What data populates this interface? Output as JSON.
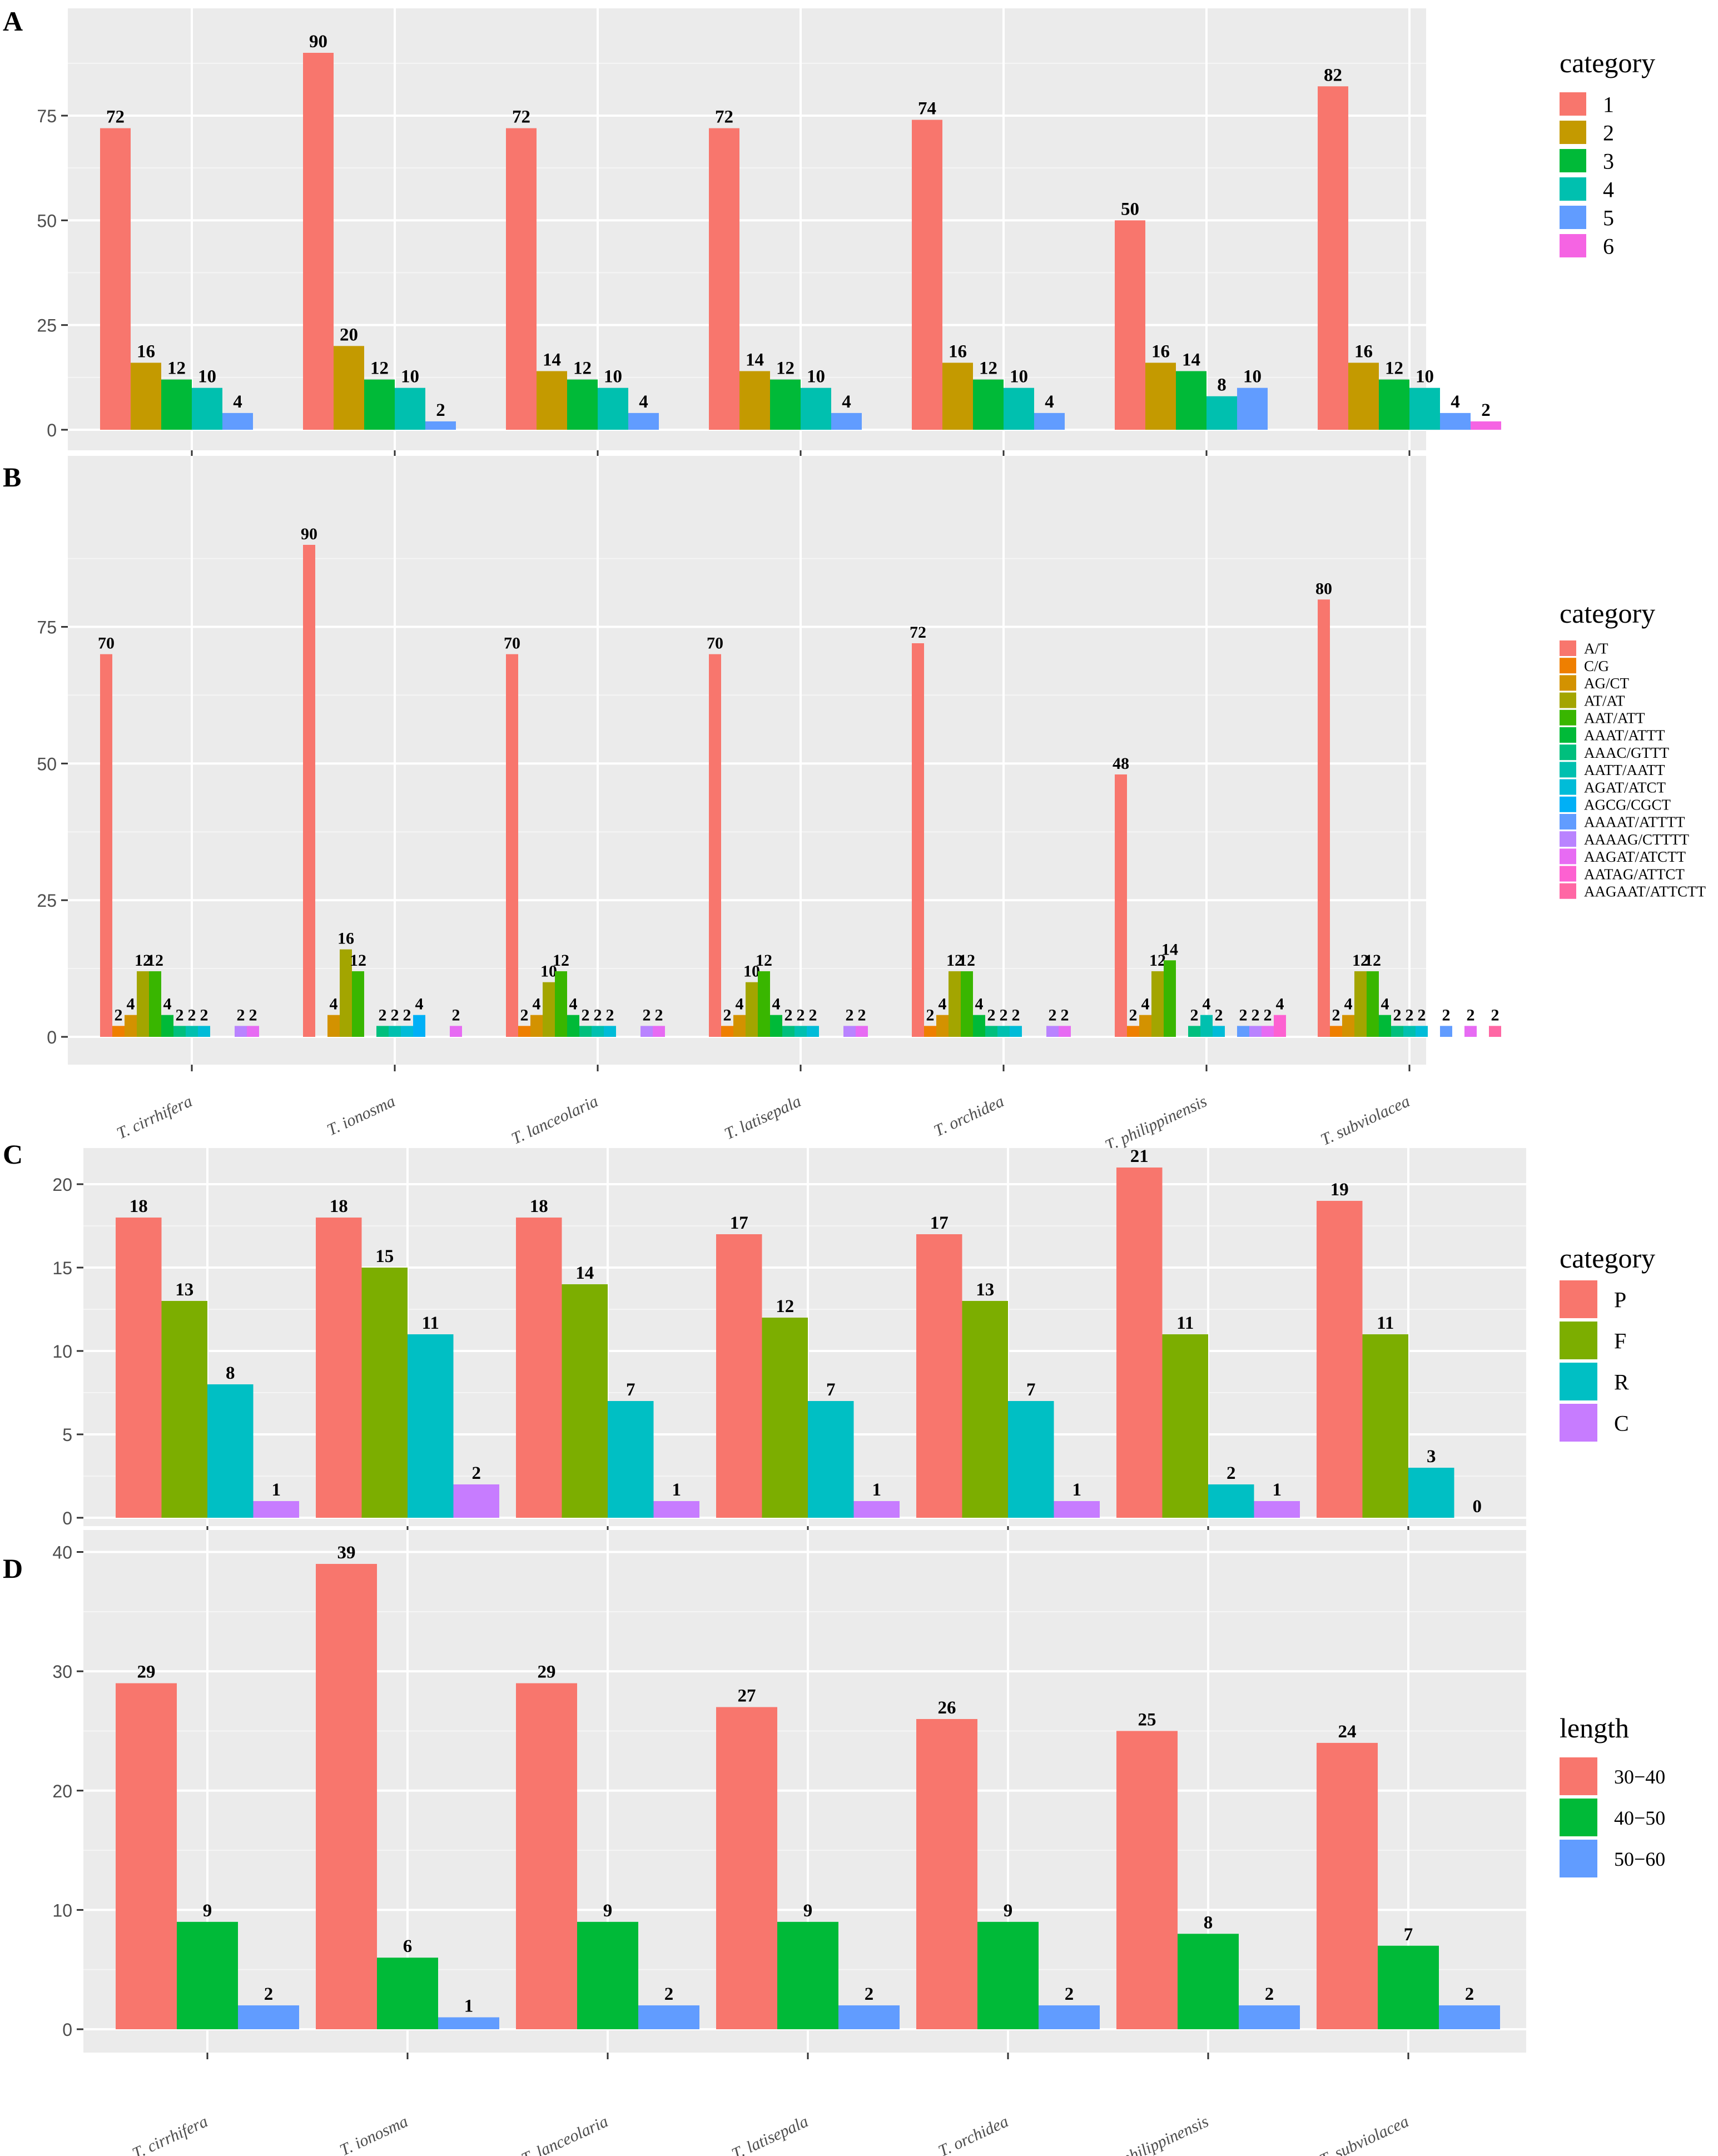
{
  "figure_title": "",
  "x_categories": [
    "T. cirrhifera",
    "T. ionosma",
    "T. lanceolaria",
    "T. latisepala",
    "T. orchidea",
    "T. philippinensis",
    "T. subviolacea"
  ],
  "chart_data": [
    {
      "panel": "A",
      "type": "bar",
      "categories": [
        "T. cirrhifera",
        "T. ionosma",
        "T. lanceolaria",
        "T. latisepala",
        "T. orchidea",
        "T. philippinensis",
        "T. subviolacea"
      ],
      "ylim": [
        0,
        90
      ],
      "yticks": [
        0,
        25,
        50,
        75
      ],
      "grid": true,
      "show_x_labels": false,
      "legend": {
        "title": "category",
        "placement": "right",
        "size": "large"
      },
      "series": [
        {
          "name": "1",
          "color": "#F8766D",
          "values": [
            72,
            90,
            72,
            72,
            74,
            50,
            82
          ]
        },
        {
          "name": "2",
          "color": "#C49A00",
          "values": [
            16,
            20,
            14,
            14,
            16,
            16,
            16
          ]
        },
        {
          "name": "3",
          "color": "#00BA38",
          "values": [
            12,
            12,
            12,
            12,
            12,
            14,
            12
          ]
        },
        {
          "name": "4",
          "color": "#00C0AF",
          "values": [
            10,
            10,
            10,
            10,
            10,
            8,
            10
          ]
        },
        {
          "name": "5",
          "color": "#619CFF",
          "values": [
            4,
            2,
            4,
            4,
            4,
            10,
            4
          ]
        },
        {
          "name": "6",
          "color": "#F564E3",
          "values": [
            null,
            null,
            null,
            null,
            null,
            null,
            2
          ]
        }
      ]
    },
    {
      "panel": "B",
      "type": "bar",
      "categories": [
        "T. cirrhifera",
        "T. ionosma",
        "T. lanceolaria",
        "T. latisepala",
        "T. orchidea",
        "T. philippinensis",
        "T. subviolacea"
      ],
      "ylim": [
        0,
        90
      ],
      "yticks": [
        0,
        25,
        50,
        75
      ],
      "grid": true,
      "show_x_labels": true,
      "legend": {
        "title": "category",
        "placement": "right",
        "size": "small"
      },
      "series": [
        {
          "name": "A/T",
          "color": "#F8766D",
          "values": [
            70,
            90,
            70,
            70,
            72,
            48,
            80
          ]
        },
        {
          "name": "C/G",
          "color": "#EF7F00",
          "values": [
            2,
            null,
            2,
            2,
            2,
            2,
            2
          ]
        },
        {
          "name": "AG/CT",
          "color": "#D39200",
          "values": [
            4,
            4,
            4,
            4,
            4,
            4,
            4
          ]
        },
        {
          "name": "AT/AT",
          "color": "#A3A500",
          "values": [
            12,
            16,
            10,
            10,
            12,
            12,
            12
          ]
        },
        {
          "name": "AAT/ATT",
          "color": "#39B600",
          "values": [
            12,
            12,
            12,
            12,
            12,
            14,
            12
          ]
        },
        {
          "name": "AAAT/ATTT",
          "color": "#00BA38",
          "values": [
            4,
            null,
            4,
            4,
            4,
            null,
            4
          ]
        },
        {
          "name": "AAAC/GTTT",
          "color": "#00BF7D",
          "values": [
            2,
            2,
            2,
            2,
            2,
            2,
            2
          ]
        },
        {
          "name": "AATT/AATT",
          "color": "#00C0AF",
          "values": [
            2,
            2,
            2,
            2,
            2,
            4,
            2
          ]
        },
        {
          "name": "AGAT/ATCT",
          "color": "#00BCD8",
          "values": [
            2,
            2,
            2,
            2,
            2,
            2,
            2
          ]
        },
        {
          "name": "AGCG/CGCT",
          "color": "#00B0F6",
          "values": [
            null,
            4,
            null,
            null,
            null,
            null,
            null
          ]
        },
        {
          "name": "AAAAT/ATTTT",
          "color": "#619CFF",
          "values": [
            null,
            null,
            null,
            null,
            null,
            2,
            2
          ]
        },
        {
          "name": "AAAAG/CTTTT",
          "color": "#B983FF",
          "values": [
            2,
            null,
            2,
            2,
            2,
            2,
            null
          ]
        },
        {
          "name": "AAGAT/ATCTT",
          "color": "#E76BF3",
          "values": [
            2,
            2,
            2,
            2,
            2,
            2,
            2
          ]
        },
        {
          "name": "AATAG/ATTCT",
          "color": "#FD61D1",
          "values": [
            null,
            null,
            null,
            null,
            null,
            4,
            null
          ]
        },
        {
          "name": "AAGAAT/ATTCTT",
          "color": "#FF67A4",
          "values": [
            null,
            null,
            null,
            null,
            null,
            null,
            2
          ]
        }
      ]
    },
    {
      "panel": "C",
      "type": "bar",
      "categories": [
        "T. cirrhifera",
        "T. ionosma",
        "T. lanceolaria",
        "T. latisepala",
        "T. orchidea",
        "T. philippinensis",
        "T. subviolacea"
      ],
      "ylim": [
        0,
        21
      ],
      "yticks": [
        0,
        5,
        10,
        15,
        20
      ],
      "grid": true,
      "show_x_labels": false,
      "legend": {
        "title": "category",
        "placement": "right",
        "size": "large"
      },
      "series": [
        {
          "name": "P",
          "color": "#F8766D",
          "values": [
            18,
            18,
            18,
            17,
            17,
            21,
            19
          ]
        },
        {
          "name": "F",
          "color": "#7CAE00",
          "values": [
            13,
            15,
            14,
            12,
            13,
            11,
            11
          ]
        },
        {
          "name": "R",
          "color": "#00BFC4",
          "values": [
            8,
            11,
            7,
            7,
            7,
            2,
            3
          ]
        },
        {
          "name": "C",
          "color": "#C77CFF",
          "values": [
            1,
            2,
            1,
            1,
            1,
            1,
            0
          ]
        }
      ]
    },
    {
      "panel": "D",
      "type": "bar",
      "categories": [
        "T. cirrhifera",
        "T. ionosma",
        "T. lanceolaria",
        "T. latisepala",
        "T. orchidea",
        "T. philippinensis",
        "T. subviolacea"
      ],
      "ylim": [
        0,
        39
      ],
      "yticks": [
        0,
        10,
        20,
        30,
        40
      ],
      "grid": true,
      "show_x_labels": true,
      "legend": {
        "title": "length",
        "placement": "right",
        "size": "large"
      },
      "series": [
        {
          "name": "30−40",
          "color": "#F8766D",
          "values": [
            29,
            39,
            29,
            27,
            26,
            25,
            24
          ]
        },
        {
          "name": "40−50",
          "color": "#00BA38",
          "values": [
            9,
            6,
            9,
            9,
            9,
            8,
            7
          ]
        },
        {
          "name": "50−60",
          "color": "#619CFF",
          "values": [
            2,
            1,
            2,
            2,
            2,
            2,
            2
          ]
        }
      ]
    }
  ]
}
